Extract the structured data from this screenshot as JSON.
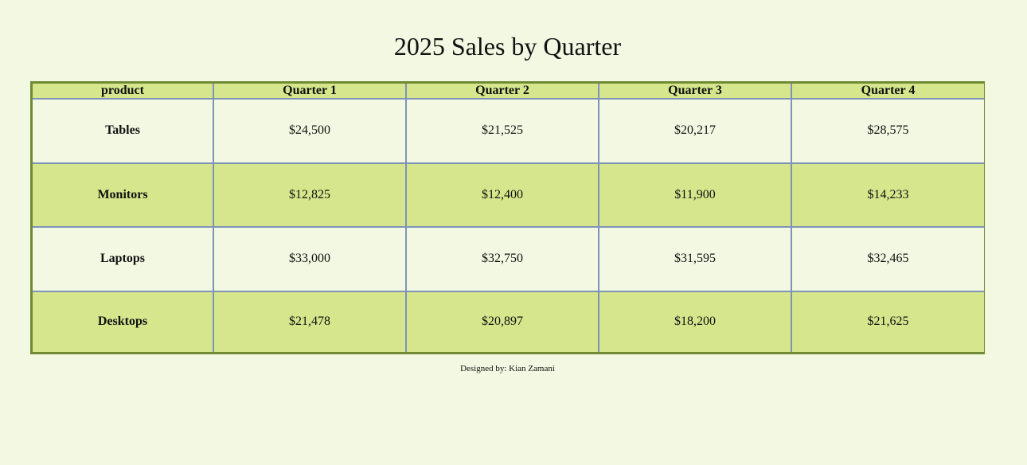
{
  "title": "2025 Sales by Quarter",
  "table": {
    "headers": [
      "product",
      "Quarter 1",
      "Quarter 2",
      "Quarter 3",
      "Quarter 4"
    ],
    "rows": [
      {
        "product": "Tables",
        "values": [
          "$24,500",
          "$21,525",
          "$20,217",
          "$28,575"
        ]
      },
      {
        "product": "Monitors",
        "values": [
          "$12,825",
          "$12,400",
          "$11,900",
          "$14,233"
        ]
      },
      {
        "product": "Laptops",
        "values": [
          "$33,000",
          "$32,750",
          "$31,595",
          "$32,465"
        ]
      },
      {
        "product": "Desktops",
        "values": [
          "$21,478",
          "$20,897",
          "$18,200",
          "$21,625"
        ]
      }
    ]
  },
  "footer": {
    "credit": "Designed by: Kian Zamani"
  },
  "colors": {
    "background": "#f3f8e2",
    "row_highlight": "#d5e68c",
    "outer_border": "#6f8a32",
    "cell_border": "#7f93b8"
  }
}
